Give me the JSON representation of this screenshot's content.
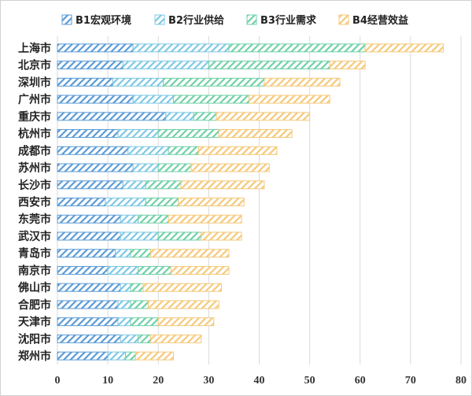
{
  "chart_data": {
    "type": "bar",
    "orientation": "horizontal",
    "stacked": true,
    "categories": [
      "上海市",
      "北京市",
      "深圳市",
      "广州市",
      "重庆市",
      "杭州市",
      "成都市",
      "苏州市",
      "长沙市",
      "西安市",
      "东莞市",
      "武汉市",
      "青岛市",
      "南京市",
      "佛山市",
      "合肥市",
      "天津市",
      "沈阳市",
      "郑州市"
    ],
    "series": [
      {
        "name": "B1宏观环境",
        "color": "#5B9BD5",
        "values": [
          15.0,
          13.0,
          11.0,
          15.0,
          21.5,
          12.0,
          14.0,
          15.0,
          13.0,
          9.5,
          12.5,
          12.5,
          11.5,
          10.0,
          12.5,
          12.0,
          12.0,
          12.5,
          10.0
        ]
      },
      {
        "name": "B2行业供给",
        "color": "#7EC8E3",
        "values": [
          19.0,
          17.0,
          10.0,
          8.0,
          5.5,
          8.0,
          8.0,
          5.0,
          4.5,
          8.0,
          3.5,
          7.5,
          3.0,
          6.0,
          2.0,
          2.5,
          2.5,
          3.5,
          3.5
        ]
      },
      {
        "name": "B3行业需求",
        "color": "#70D0A8",
        "values": [
          27.0,
          24.0,
          20.0,
          15.0,
          4.5,
          12.0,
          6.0,
          6.5,
          7.0,
          6.5,
          6.0,
          8.5,
          4.0,
          6.5,
          2.5,
          3.5,
          5.5,
          2.5,
          2.0
        ]
      },
      {
        "name": "B4经营效益",
        "color": "#F5C97A",
        "values": [
          15.5,
          7.0,
          15.0,
          16.0,
          18.5,
          14.5,
          15.5,
          15.5,
          16.5,
          13.0,
          14.5,
          8.0,
          15.5,
          11.5,
          15.5,
          14.0,
          11.0,
          10.0,
          7.5
        ]
      }
    ],
    "xlim": [
      0,
      80
    ],
    "xticks": [
      "0",
      "10",
      "20",
      "30",
      "40",
      "50",
      "60",
      "70",
      "80"
    ],
    "grid": true,
    "legend_position": "top",
    "title": "",
    "xlabel": "",
    "ylabel": ""
  }
}
